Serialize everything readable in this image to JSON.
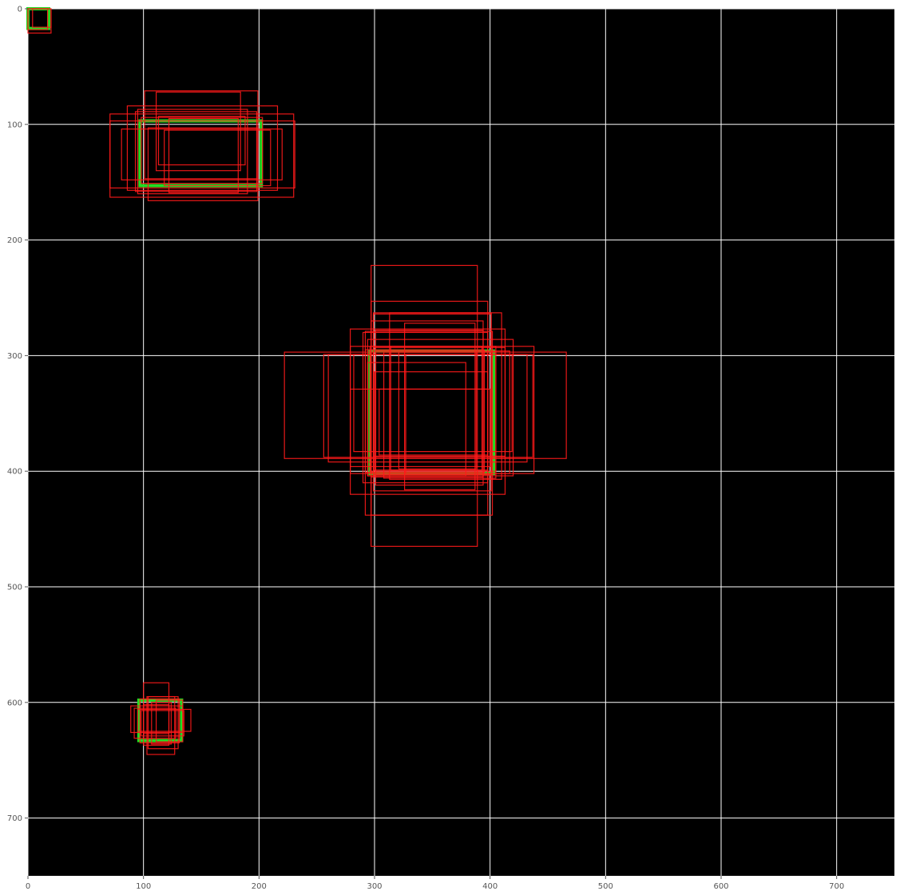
{
  "chart_data": {
    "type": "scatter",
    "title": "",
    "xlabel": "",
    "ylabel": "",
    "xlim": [
      0,
      750
    ],
    "ylim": [
      750,
      0
    ],
    "y_inverted": true,
    "grid": true,
    "background": "#000000",
    "x_ticks": [
      0,
      100,
      200,
      300,
      400,
      500,
      600,
      700
    ],
    "y_ticks": [
      0,
      100,
      200,
      300,
      400,
      500,
      600,
      700
    ],
    "ground_truth_color": "#22dd22",
    "prediction_color": "#ff1a1a",
    "ground_truth_boxes": [
      [
        0,
        0,
        18,
        17
      ],
      [
        97,
        97,
        202,
        153
      ],
      [
        296,
        296,
        403,
        402
      ],
      [
        96,
        598,
        133,
        633
      ]
    ],
    "predicted_boxes": [
      [
        0,
        0,
        20,
        21
      ],
      [
        0,
        0,
        17,
        18
      ],
      [
        4,
        0,
        20,
        16
      ],
      [
        71,
        91,
        230,
        163
      ],
      [
        86,
        84,
        216,
        157
      ],
      [
        101,
        71,
        199,
        147
      ],
      [
        93,
        89,
        198,
        158
      ],
      [
        98,
        94,
        203,
        151
      ],
      [
        81,
        104,
        220,
        148
      ],
      [
        104,
        103,
        199,
        166
      ],
      [
        111,
        72,
        184,
        140
      ],
      [
        71,
        97,
        231,
        155
      ],
      [
        95,
        87,
        190,
        160
      ],
      [
        122,
        95,
        182,
        159
      ],
      [
        113,
        93,
        188,
        135
      ],
      [
        118,
        105,
        210,
        153
      ],
      [
        297,
        222,
        389,
        465
      ],
      [
        222,
        297,
        466,
        389
      ],
      [
        297,
        253,
        398,
        438
      ],
      [
        279,
        292,
        438,
        402
      ],
      [
        292,
        279,
        402,
        438
      ],
      [
        256,
        299,
        437,
        388
      ],
      [
        299,
        263,
        401,
        417
      ],
      [
        260,
        299,
        432,
        392
      ],
      [
        279,
        277,
        413,
        420
      ],
      [
        299,
        264,
        401,
        403
      ],
      [
        297,
        270,
        394,
        405
      ],
      [
        290,
        280,
        398,
        410
      ],
      [
        301,
        296,
        417,
        402
      ],
      [
        313,
        263,
        410,
        407
      ],
      [
        279,
        329,
        400,
        396
      ],
      [
        301,
        278,
        394,
        412
      ],
      [
        292,
        295,
        395,
        401
      ],
      [
        294,
        306,
        379,
        404
      ],
      [
        314,
        292,
        393,
        399
      ],
      [
        300,
        314,
        398,
        399
      ],
      [
        282,
        299,
        419,
        383
      ],
      [
        296,
        292,
        405,
        400
      ],
      [
        308,
        297,
        405,
        406
      ],
      [
        326,
        272,
        387,
        416
      ],
      [
        299,
        293,
        413,
        387
      ],
      [
        327,
        299,
        401,
        402
      ],
      [
        294,
        286,
        420,
        404
      ],
      [
        321,
        297,
        388,
        398
      ],
      [
        304,
        329,
        398,
        386
      ],
      [
        100,
        583,
        122,
        627
      ],
      [
        89,
        603,
        134,
        626
      ],
      [
        103,
        595,
        127,
        645
      ],
      [
        95,
        606,
        141,
        625
      ],
      [
        100,
        602,
        122,
        637
      ],
      [
        97,
        597,
        131,
        635
      ],
      [
        92,
        605,
        128,
        631
      ],
      [
        104,
        595,
        130,
        640
      ],
      [
        107,
        600,
        124,
        636
      ],
      [
        98,
        607,
        135,
        629
      ],
      [
        111,
        598,
        134,
        634
      ]
    ]
  }
}
